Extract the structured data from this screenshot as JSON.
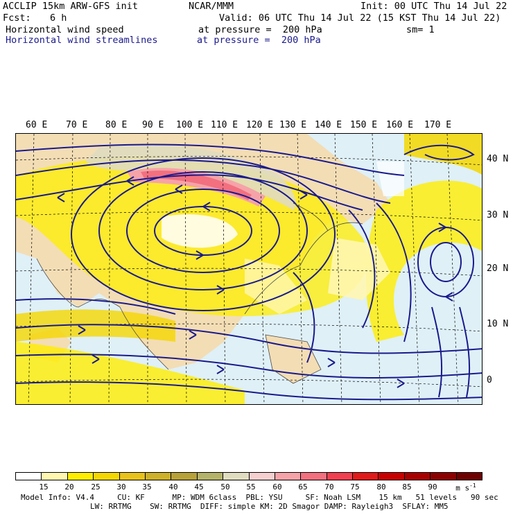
{
  "header": {
    "model": "ACCLIP 15km ARW-GFS init",
    "org": "NCAR/MMM",
    "init": "Init: 00 UTC Thu 14 Jul 22",
    "fcst_label": "Fcst:",
    "fcst_value": "6 h",
    "valid": "Valid: 06 UTC Thu 14 Jul 22 (15 KST Thu 14 Jul 22)",
    "field1_name": "Horizontal wind speed",
    "field1_level": "at pressure =  200 hPa",
    "field1_smooth": "sm= 1",
    "field2_name": "Horizontal wind streamlines",
    "field2_level": "at pressure =  200 hPa"
  },
  "map": {
    "lon_labels": [
      "60 E",
      "70 E",
      "80 E",
      "90 E",
      "100 E",
      "110 E",
      "120 E",
      "130 E",
      "140 E",
      "150 E",
      "160 E",
      "170 E"
    ],
    "lat_labels": [
      "40 N",
      "30 N",
      "20 N",
      "10 N",
      "0"
    ],
    "colors": {
      "land": "#f3ddb5",
      "ocean": "#dff0f7",
      "streamline": "#1a1a8c"
    }
  },
  "colorbar": {
    "unit": "m s",
    "unit_exp": "-1",
    "ticks": [
      "15",
      "20",
      "25",
      "30",
      "35",
      "40",
      "45",
      "50",
      "55",
      "60",
      "65",
      "70",
      "75",
      "80",
      "85",
      "90"
    ],
    "colors": [
      "#ffffff",
      "#fff6b0",
      "#ffee00",
      "#f5d700",
      "#e8c21a",
      "#cdb12a",
      "#b7a13a",
      "#b5b36a",
      "#e0dcc0",
      "#f6cfcf",
      "#f5a3a8",
      "#f27080",
      "#f04050",
      "#e01a1a",
      "#c80000",
      "#a80000",
      "#8c0000",
      "#6e0000"
    ]
  },
  "footer": {
    "line1": "Model Info: V4.4     CU: KF      MP: WDM 6class  PBL: YSU     SF: Noah LSM    15 km   51 levels   90 sec",
    "line2": "LW: RRTMG    SW: RRTMG  DIFF: simple KM: 2D Smagor DAMP: Rayleigh3  SFLAY: MM5"
  }
}
